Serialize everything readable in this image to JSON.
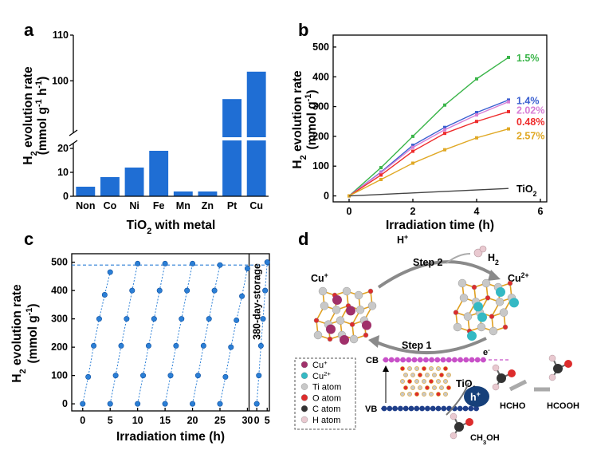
{
  "colors": {
    "bar": "#1f6ed4",
    "green": "#3bb54a",
    "blue": "#3a5fd0",
    "pink": "#d77fd6",
    "red": "#ee2c2c",
    "gold": "#e0a824",
    "black": "#444444",
    "cycle": "#2b7fd6",
    "cu_plus": "#a0306a",
    "cu_2plus": "#34b9c4",
    "ti": "#c8c8c8",
    "o": "#dd2c2c",
    "c": "#333333",
    "h": "#e9c9d0",
    "cb": "#c850c8",
    "vb": "#1f3f8a"
  },
  "panels": {
    "a": "a",
    "b": "b",
    "c": "c",
    "d": "d"
  },
  "chart_data": [
    {
      "type": "bar",
      "panel": "a",
      "categories": [
        "Non",
        "Co",
        "Ni",
        "Fe",
        "Mn",
        "Zn",
        "Pt",
        "Cu"
      ],
      "values": [
        4,
        8,
        12,
        19,
        2,
        2,
        96,
        102
      ],
      "xlabel": "TiO2 with metal",
      "xlabel_parts": [
        "TiO",
        "2",
        " with metal"
      ],
      "ylabel": "H2 evolution rate (mmol g-1 h-1)",
      "ylabel_line1": [
        "H",
        "2",
        " evolution rate"
      ],
      "ylabel_line2": [
        "(mmol g",
        "-1",
        " h",
        "-1",
        ")"
      ],
      "y_lower_ticks": [
        "0",
        "10",
        "20"
      ],
      "y_upper_ticks": [
        "100",
        "110"
      ],
      "ylim_lower": [
        0,
        23
      ],
      "ylim_upper": [
        88,
        110
      ],
      "broken_axis": true
    },
    {
      "type": "line",
      "panel": "b",
      "x": [
        0,
        1,
        2,
        3,
        4,
        5
      ],
      "series": [
        {
          "name": "1.5%",
          "color_key": "green",
          "values": [
            0,
            95,
            200,
            305,
            393,
            465
          ]
        },
        {
          "name": "1.4%",
          "color_key": "blue",
          "values": [
            0,
            80,
            170,
            230,
            280,
            322
          ]
        },
        {
          "name": "2.02%",
          "color_key": "pink",
          "values": [
            0,
            78,
            163,
            222,
            272,
            316
          ]
        },
        {
          "name": "0.48%",
          "color_key": "red",
          "values": [
            0,
            70,
            150,
            210,
            250,
            283
          ]
        },
        {
          "name": "2.57%",
          "color_key": "gold",
          "values": [
            0,
            55,
            110,
            155,
            195,
            225
          ]
        },
        {
          "name": "TiO2",
          "name_parts": [
            "TiO",
            "2"
          ],
          "color_key": "black",
          "values": [
            0,
            5,
            10,
            15,
            20,
            25
          ]
        }
      ],
      "xlabel": "Irradiation time (h)",
      "ylabel": "H2 evolution rate (mmol g-1)",
      "ylabel_line1": [
        "H",
        "2",
        " evolution rate"
      ],
      "ylabel_line2": [
        "(mmol g",
        "-1",
        ")"
      ],
      "xticks": [
        "0",
        "2",
        "4",
        "6"
      ],
      "yticks": [
        "0",
        "100",
        "200",
        "300",
        "400",
        "500"
      ],
      "xlim": [
        -0.5,
        6.2
      ],
      "ylim": [
        -20,
        540
      ]
    },
    {
      "type": "scatter",
      "panel": "c",
      "cycles": [
        {
          "x": [
            0,
            1,
            2,
            3,
            4,
            5
          ],
          "values": [
            0,
            95,
            205,
            300,
            385,
            465
          ]
        },
        {
          "x": [
            5,
            6,
            7,
            8,
            9,
            10
          ],
          "values": [
            0,
            100,
            205,
            300,
            400,
            495
          ]
        },
        {
          "x": [
            10,
            11,
            12,
            13,
            14,
            15
          ],
          "values": [
            0,
            100,
            205,
            300,
            400,
            495
          ]
        },
        {
          "x": [
            15,
            16,
            17,
            18,
            19,
            20
          ],
          "values": [
            0,
            100,
            205,
            300,
            400,
            495
          ]
        },
        {
          "x": [
            20,
            21,
            22,
            23,
            24,
            25
          ],
          "values": [
            0,
            100,
            205,
            300,
            400,
            490
          ]
        },
        {
          "x": [
            25,
            26,
            27,
            28,
            29,
            30
          ],
          "values": [
            0,
            95,
            200,
            295,
            380,
            478
          ]
        }
      ],
      "storage_cycle": {
        "x": [
          0,
          1,
          2,
          3,
          4,
          5
        ],
        "values": [
          0,
          100,
          205,
          300,
          400,
          500
        ]
      },
      "reference_line": 490,
      "storage_label": "380-day-storage",
      "xlabel": "Irradiation time (h)",
      "ylabel": "H2 evolution rate (mmol g-1)",
      "ylabel_line1": [
        "H",
        "2",
        " evolution rate"
      ],
      "ylabel_line2": [
        "(mmol g",
        "-1",
        ")"
      ],
      "xticks": [
        "0",
        "5",
        "10",
        "15",
        "20",
        "25",
        "30"
      ],
      "xticks_storage": [
        "0",
        "5"
      ],
      "yticks": [
        "0",
        "100",
        "200",
        "300",
        "400",
        "500"
      ],
      "xlim": [
        -2,
        34
      ],
      "ylim": [
        -25,
        530
      ]
    }
  ],
  "diagram": {
    "h_plus": [
      "H",
      "+"
    ],
    "h2": [
      "H",
      "2"
    ],
    "step2": "Step 2",
    "step1": "Step 1",
    "cu_plus_label": [
      "Cu",
      "+"
    ],
    "cu_2plus_label": [
      "Cu",
      "2+"
    ],
    "cb": "CB",
    "vb": "VB",
    "electron": [
      "e",
      "-"
    ],
    "hole": [
      "h",
      "+"
    ],
    "tio2": [
      "TiO",
      "2"
    ],
    "hcho": "HCHO",
    "hcooh": "HCOOH",
    "ch3oh": [
      "CH",
      "3",
      "OH"
    ],
    "legend": [
      {
        "parts": [
          "Cu",
          "+"
        ],
        "color_key": "cu_plus"
      },
      {
        "parts": [
          "Cu",
          "2+"
        ],
        "color_key": "cu_2plus"
      },
      {
        "parts": [
          "Ti atom"
        ],
        "color_key": "ti"
      },
      {
        "parts": [
          "O atom"
        ],
        "color_key": "o"
      },
      {
        "parts": [
          "C atom"
        ],
        "color_key": "c"
      },
      {
        "parts": [
          "H atom"
        ],
        "color_key": "h"
      }
    ]
  }
}
